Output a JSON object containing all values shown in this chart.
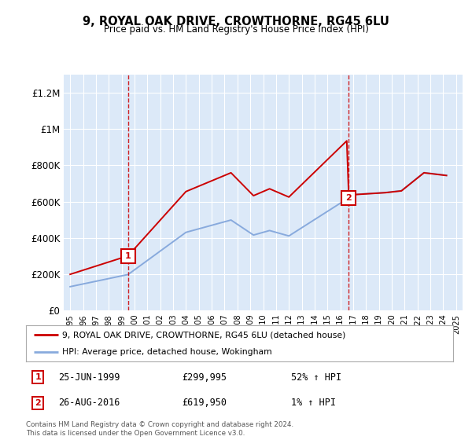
{
  "title": "9, ROYAL OAK DRIVE, CROWTHORNE, RG45 6LU",
  "subtitle": "Price paid vs. HM Land Registry's House Price Index (HPI)",
  "plot_bg_color": "#dce9f8",
  "ylim": [
    0,
    1300000
  ],
  "yticks": [
    0,
    200000,
    400000,
    600000,
    800000,
    1000000,
    1200000
  ],
  "ytick_labels": [
    "£0",
    "£200K",
    "£400K",
    "£600K",
    "£800K",
    "£1M",
    "£1.2M"
  ],
  "sale1_year": 1999.49,
  "sale1_price": 299995,
  "sale2_year": 2016.66,
  "sale2_price": 619950,
  "sale1_date": "25-JUN-1999",
  "sale1_price_str": "£299,995",
  "sale1_pct": "52% ↑ HPI",
  "sale2_date": "26-AUG-2016",
  "sale2_price_str": "£619,950",
  "sale2_pct": "1% ↑ HPI",
  "legend1": "9, ROYAL OAK DRIVE, CROWTHORNE, RG45 6LU (detached house)",
  "legend2": "HPI: Average price, detached house, Wokingham",
  "footer": "Contains HM Land Registry data © Crown copyright and database right 2024.\nThis data is licensed under the Open Government Licence v3.0.",
  "sale_color": "#cc0000",
  "hpi_color": "#88aadd",
  "xlim_left": 1994.5,
  "xlim_right": 2025.5
}
